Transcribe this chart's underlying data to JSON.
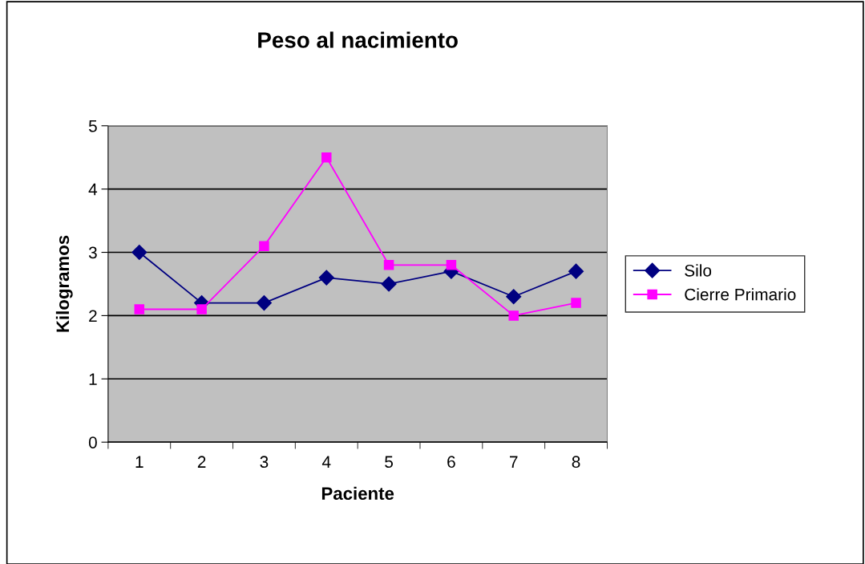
{
  "chart_data": {
    "type": "line",
    "title": "Peso al nacimiento",
    "xlabel": "Paciente",
    "ylabel": "Kilogramos",
    "categories": [
      "1",
      "2",
      "3",
      "4",
      "5",
      "6",
      "7",
      "8"
    ],
    "series": [
      {
        "name": "Silo",
        "color": "#000080",
        "marker": "diamond",
        "values": [
          3.0,
          2.2,
          2.2,
          2.6,
          2.5,
          2.7,
          2.3,
          2.7
        ]
      },
      {
        "name": "Cierre Primario",
        "color": "#ff00ff",
        "marker": "square",
        "values": [
          2.1,
          2.1,
          3.1,
          4.5,
          2.8,
          2.8,
          2.0,
          2.2
        ]
      }
    ],
    "ylim": [
      0,
      5
    ],
    "yticks": [
      0,
      1,
      2,
      3,
      4,
      5
    ],
    "grid": "y",
    "legend": "right",
    "line_style": "solid"
  }
}
